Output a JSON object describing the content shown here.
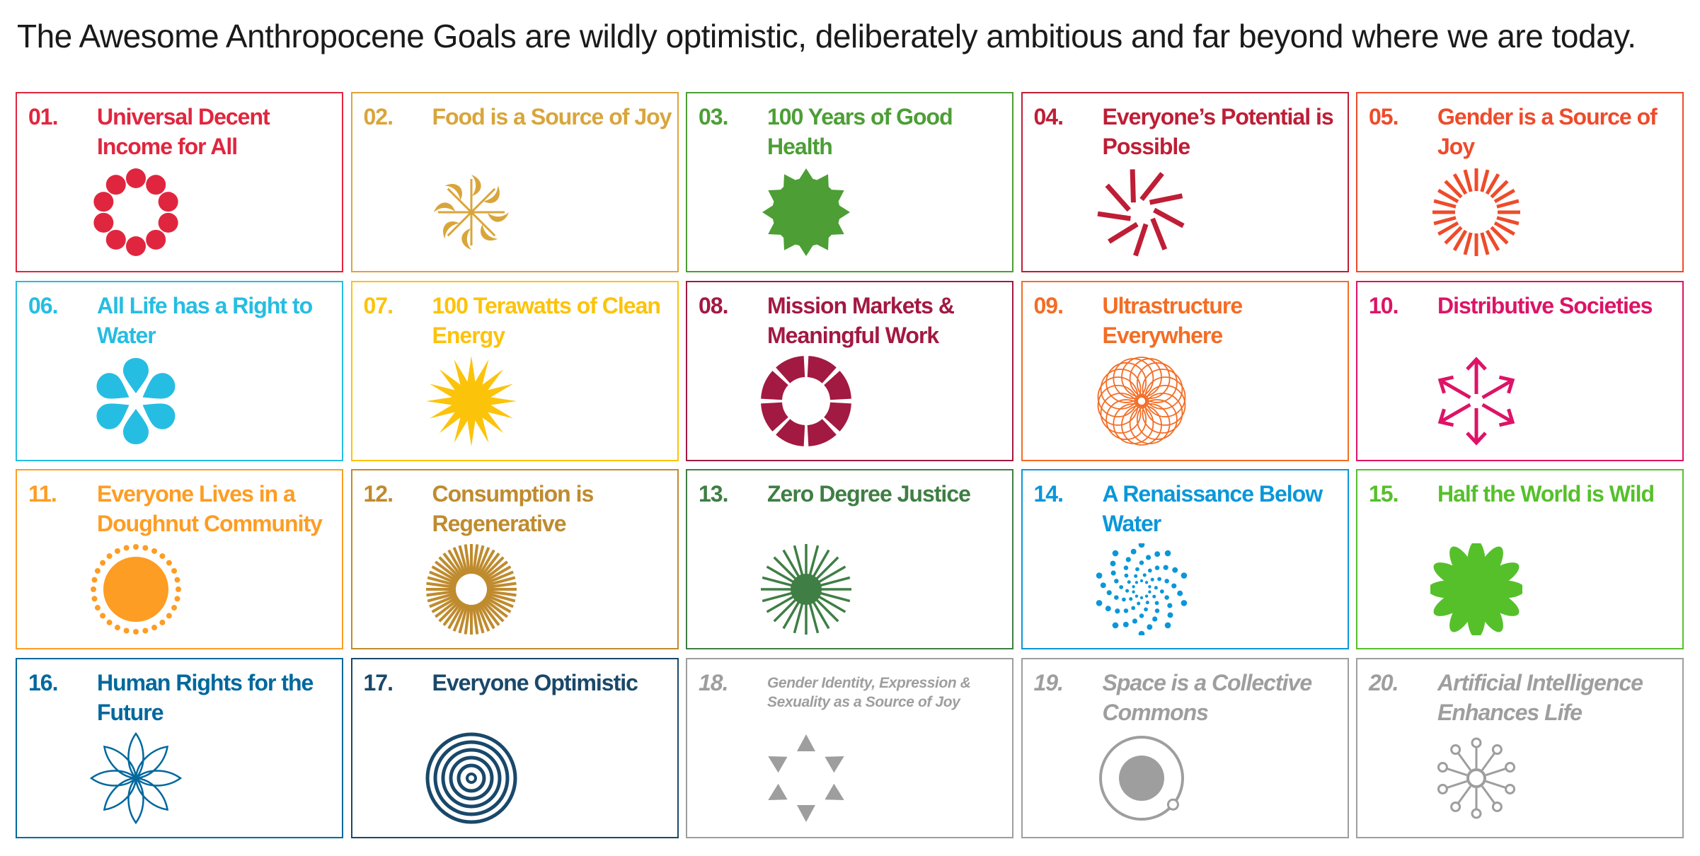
{
  "headline": "The Awesome Anthropocene Goals are wildly optimistic, deliberately ambitious and far beyond where we are today.",
  "goals": [
    {
      "number": "01.",
      "title": "Universal Decent Income for All",
      "color": "#e0263e",
      "icon": "ring-of-dots-icon"
    },
    {
      "number": "02.",
      "title": "Food is a Source of Joy",
      "color": "#d9a53b",
      "icon": "leaf-pinwheel-icon"
    },
    {
      "number": "03.",
      "title": "100 Years of Good Health",
      "color": "#4c9e35",
      "icon": "scalloped-star-icon"
    },
    {
      "number": "04.",
      "title": "Everyone’s Potential is Possible",
      "color": "#be1e36",
      "icon": "spiral-lines-icon"
    },
    {
      "number": "05.",
      "title": "Gender is a Source of Joy",
      "color": "#ee4b2b",
      "icon": "radiating-bars-icon"
    },
    {
      "number": "06.",
      "title": "All Life has a Right to Water",
      "color": "#26bde2",
      "icon": "water-drop-flower-icon"
    },
    {
      "number": "07.",
      "title": "100 Terawatts of Clean Energy",
      "color": "#fcc30b",
      "icon": "sun-spikes-icon"
    },
    {
      "number": "08.",
      "title": "Mission Markets & Meaningful Work",
      "color": "#a21942",
      "icon": "segmented-ring-icon"
    },
    {
      "number": "09.",
      "title": "Ultrastructure Everywhere",
      "color": "#f36d25",
      "icon": "spirograph-icon"
    },
    {
      "number": "10.",
      "title": "Distributive Societies",
      "color": "#dd1367",
      "icon": "outward-arrows-icon"
    },
    {
      "number": "11.",
      "title": "Everyone Lives in a Doughnut Community",
      "color": "#fd9d24",
      "icon": "sun-dots-icon"
    },
    {
      "number": "12.",
      "title": "Consumption is Regenerative",
      "color": "#bf8b2e",
      "icon": "dense-ray-ring-icon"
    },
    {
      "number": "13.",
      "title": "Zero Degree Justice",
      "color": "#3f7e44",
      "icon": "starburst-icon"
    },
    {
      "number": "14.",
      "title": "A Renaissance Below Water",
      "color": "#0a97d9",
      "icon": "dot-spiral-icon"
    },
    {
      "number": "15.",
      "title": "Half the World is Wild",
      "color": "#56c02b",
      "icon": "daisy-icon"
    },
    {
      "number": "16.",
      "title": "Human Rights for the Future",
      "color": "#00689d",
      "icon": "lotus-outline-icon"
    },
    {
      "number": "17.",
      "title": "Everyone Optimistic",
      "color": "#19486a",
      "icon": "concentric-circles-icon"
    },
    {
      "number": "18.",
      "title": "Gender Identity, Expression & Sexuality as a Source of Joy",
      "color": "#9e9e9e",
      "icon": "triangle-ring-icon"
    },
    {
      "number": "19.",
      "title": "Space is a Collective Commons",
      "color": "#9e9e9e",
      "icon": "orbit-icon"
    },
    {
      "number": "20.",
      "title": "Artificial Intelligence Enhances Life",
      "color": "#9e9e9e",
      "icon": "neural-node-icon"
    }
  ]
}
